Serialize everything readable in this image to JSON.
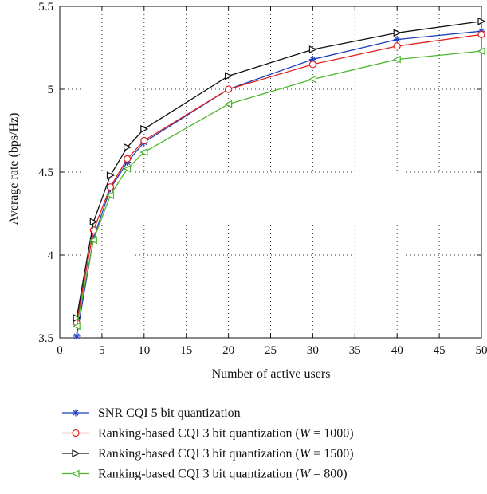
{
  "chart_data": {
    "type": "line",
    "title": "",
    "xlabel": "Number of active users",
    "ylabel": "Average rate (bps/Hz)",
    "xlim": [
      0,
      50
    ],
    "ylim": [
      3.5,
      5.5
    ],
    "xticks": [
      "0",
      "5",
      "10",
      "15",
      "20",
      "25",
      "30",
      "35",
      "40",
      "45",
      "50"
    ],
    "yticks": [
      "3.5",
      "4",
      "4.5",
      "5",
      "5.5"
    ],
    "grid": "dotted",
    "legend_position": "below-plot",
    "x": [
      2,
      4,
      6,
      8,
      10,
      20,
      30,
      40,
      50
    ],
    "series": [
      {
        "name": "SNR CQI 5 bit quantization",
        "label_prefix": "SNR CQI 5 bit quantization",
        "label_math": "",
        "color": "#1f3fbf",
        "marker": "star",
        "values": [
          3.51,
          4.1,
          4.4,
          4.56,
          4.68,
          5.0,
          5.18,
          5.3,
          5.35
        ]
      },
      {
        "name": "Ranking-based CQI 3 bit quantization (W = 1000)",
        "label_prefix": "Ranking-based CQI 3 bit quantization (",
        "label_math": "W",
        "label_suffix": " = 1000)",
        "color": "#e0201a",
        "marker": "circle",
        "values": [
          3.59,
          4.15,
          4.41,
          4.58,
          4.69,
          5.0,
          5.15,
          5.26,
          5.33
        ]
      },
      {
        "name": "Ranking-based CQI 3 bit quantization (W = 1500)",
        "label_prefix": "Ranking-based CQI 3 bit quantization (",
        "label_math": "W",
        "label_suffix": " = 1500)",
        "color": "#111111",
        "marker": "triangle-right",
        "values": [
          3.62,
          4.2,
          4.48,
          4.65,
          4.76,
          5.08,
          5.24,
          5.34,
          5.41
        ]
      },
      {
        "name": "Ranking-based CQI 3 bit quantization (W = 800)",
        "label_prefix": "Ranking-based CQI 3 bit quantization (",
        "label_math": "W",
        "label_suffix": " = 800)",
        "color": "#4cb82e",
        "marker": "triangle-left",
        "values": [
          3.57,
          4.09,
          4.36,
          4.52,
          4.62,
          4.91,
          5.06,
          5.18,
          5.23
        ]
      }
    ]
  }
}
